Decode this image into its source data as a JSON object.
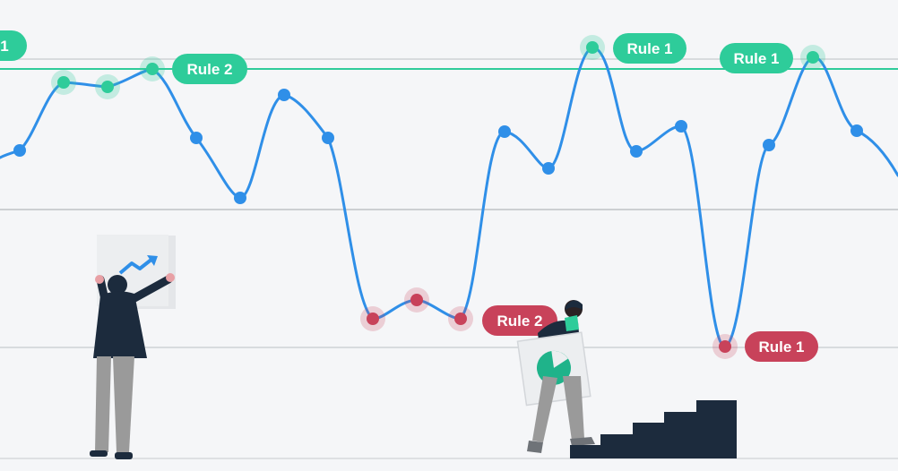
{
  "colors": {
    "background": "#f5f6f8",
    "line": "#2f8fe8",
    "point": "#2f8fe8",
    "upper_rule": "#2ecc9a",
    "lower_rule": "#c8425a",
    "gridline": "#cfd2d6",
    "figure_dark": "#1c2b3d",
    "figure_gray": "#9a9a9a"
  },
  "upper_labels": {
    "left_clipped": "1",
    "rule2": "Rule 2",
    "rule1_a": "Rule 1",
    "rule1_b": "Rule 1"
  },
  "lower_labels": {
    "rule2": "Rule 2",
    "rule1": "Rule 1"
  },
  "illustrations": {
    "left_person": "person-holding-chart-icon",
    "right_person": "person-carrying-pie-chart-icon",
    "stairs": "stairs-icon",
    "chart_icon": "trend-up-arrow-icon"
  }
}
